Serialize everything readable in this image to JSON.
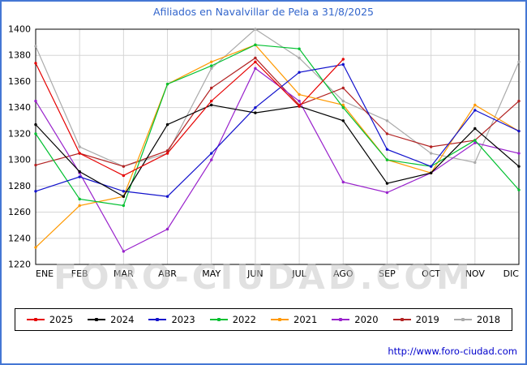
{
  "title": "Afiliados en Navalvillar de Pela a 31/8/2025",
  "watermark": "FORO-CIUDAD.COM",
  "footer": {
    "url": "http://www.foro-ciudad.com"
  },
  "chart_data": {
    "type": "line",
    "title": "Afiliados en Navalvillar de Pela a 31/8/2025",
    "categories": [
      "ENE",
      "FEB",
      "MAR",
      "ABR",
      "MAY",
      "JUN",
      "JUL",
      "AGO",
      "SEP",
      "OCT",
      "NOV",
      "DIC"
    ],
    "ylim": [
      1220,
      1400
    ],
    "ytick_step": 20,
    "grid": true,
    "legend_position": "bottom",
    "xlabel": "",
    "ylabel": "",
    "series": [
      {
        "name": "2025",
        "color": "#e60000",
        "values": [
          1374,
          1305,
          1288,
          1305,
          1345,
          1375,
          1341,
          1377
        ]
      },
      {
        "name": "2024",
        "color": "#000000",
        "values": [
          1327,
          1291,
          1272,
          1327,
          1342,
          1336,
          1341,
          1330,
          1282,
          1290,
          1324,
          1295
        ]
      },
      {
        "name": "2023",
        "color": "#1111cc",
        "values": [
          1276,
          1287,
          1276,
          1272,
          1305,
          1340,
          1367,
          1373,
          1308,
          1295,
          1338,
          1322
        ]
      },
      {
        "name": "2022",
        "color": "#00c030",
        "values": [
          1320,
          1270,
          1265,
          1358,
          1372,
          1388,
          1385,
          1340,
          1300,
          1295,
          1315,
          1277
        ]
      },
      {
        "name": "2021",
        "color": "#ff9900",
        "values": [
          1233,
          1265,
          1272,
          1358,
          1375,
          1388,
          1350,
          1342,
          1300,
          1290,
          1342,
          1322
        ]
      },
      {
        "name": "2020",
        "color": "#9922cc",
        "values": [
          1345,
          1290,
          1230,
          1247,
          1300,
          1370,
          1345,
          1283,
          1275,
          1290,
          1313,
          1305
        ]
      },
      {
        "name": "2019",
        "color": "#b22222",
        "values": [
          1296,
          1305,
          1295,
          1307,
          1355,
          1378,
          1342,
          1355,
          1320,
          1310,
          1315,
          1345
        ]
      },
      {
        "name": "2018",
        "color": "#aaaaaa",
        "values": [
          1387,
          1310,
          1295,
          1305,
          1370,
          1400,
          1378,
          1345,
          1330,
          1305,
          1298,
          1375
        ]
      }
    ]
  }
}
